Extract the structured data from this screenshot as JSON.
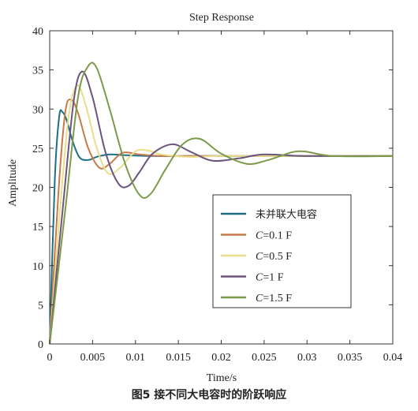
{
  "chart_data": {
    "type": "line",
    "title": "Step Response",
    "xlabel": "Time/s",
    "ylabel": "Amplitude",
    "xlim": [
      0,
      0.04
    ],
    "ylim": [
      0,
      40
    ],
    "xticks": [
      0,
      0.005,
      0.01,
      0.015,
      0.02,
      0.025,
      0.03,
      0.035,
      0.04
    ],
    "xtick_labels": [
      "0",
      "0.005",
      "0.01",
      "0.015",
      "0.02",
      "0.025",
      "0.03",
      "0.035",
      "0.04"
    ],
    "yticks": [
      0,
      5,
      10,
      15,
      20,
      25,
      30,
      35,
      40
    ],
    "ytick_labels": [
      "0",
      "5",
      "10",
      "15",
      "20",
      "25",
      "30",
      "35",
      "40"
    ],
    "grid": false,
    "legend_position": "lower-right",
    "final_value": 24,
    "series": [
      {
        "name": "未并联大电容",
        "color": "#1e6f86",
        "x": [
          0,
          0.0006,
          0.0011,
          0.0015,
          0.002,
          0.0027,
          0.0035,
          0.0045,
          0.0055,
          0.007,
          0.009,
          0.012,
          0.016,
          0.02,
          0.03,
          0.04
        ],
        "y": [
          0,
          21,
          29,
          29.6,
          28.5,
          25.8,
          23.8,
          23.5,
          23.9,
          24.2,
          24.1,
          24,
          24,
          24,
          24,
          24
        ]
      },
      {
        "name_label": "C",
        "name_suffix": "=0.1 F",
        "color": "#c8794a",
        "x": [
          0,
          0.001,
          0.0018,
          0.0025,
          0.0033,
          0.0045,
          0.0058,
          0.007,
          0.0085,
          0.0105,
          0.013,
          0.016,
          0.02,
          0.03,
          0.04
        ],
        "y": [
          0,
          19,
          29.5,
          31.2,
          29.5,
          25,
          22.5,
          23,
          24.4,
          24.2,
          24,
          24,
          24,
          24,
          24
        ]
      },
      {
        "name_label": "C",
        "name_suffix": "=0.5 F",
        "color": "#e8de8c",
        "x": [
          0,
          0.0012,
          0.0022,
          0.0032,
          0.0042,
          0.0055,
          0.0068,
          0.0082,
          0.01,
          0.0115,
          0.013,
          0.016,
          0.02,
          0.025,
          0.03,
          0.04
        ],
        "y": [
          0,
          17,
          29,
          33,
          30.5,
          25,
          21.8,
          22.5,
          24.6,
          24.7,
          24.2,
          23.9,
          24,
          24,
          24,
          24
        ]
      },
      {
        "name_label": "C",
        "name_suffix": "=1 F",
        "color": "#6b557c",
        "x": [
          0,
          0.0015,
          0.0028,
          0.0038,
          0.005,
          0.0065,
          0.008,
          0.0092,
          0.0105,
          0.012,
          0.0143,
          0.0165,
          0.019,
          0.022,
          0.025,
          0.03,
          0.04
        ],
        "y": [
          0,
          17,
          31,
          34.8,
          31.5,
          24.5,
          20.5,
          20.2,
          22,
          24.3,
          25.5,
          24.5,
          23.4,
          23.7,
          24.2,
          24,
          24
        ]
      },
      {
        "name_label": "C",
        "name_suffix": "=1.5 F",
        "color": "#7c9a4a",
        "x": [
          0,
          0.0018,
          0.0033,
          0.0045,
          0.0055,
          0.007,
          0.0088,
          0.0105,
          0.0118,
          0.0135,
          0.0155,
          0.0175,
          0.02,
          0.023,
          0.0255,
          0.029,
          0.033,
          0.04
        ],
        "y": [
          0,
          17,
          31.5,
          35.5,
          35.2,
          30,
          23,
          19,
          19.2,
          22.3,
          25.5,
          26.2,
          24.3,
          23,
          23.5,
          24.6,
          24,
          24
        ]
      }
    ]
  },
  "caption": "图5   接不同大电容时的阶跃响应"
}
